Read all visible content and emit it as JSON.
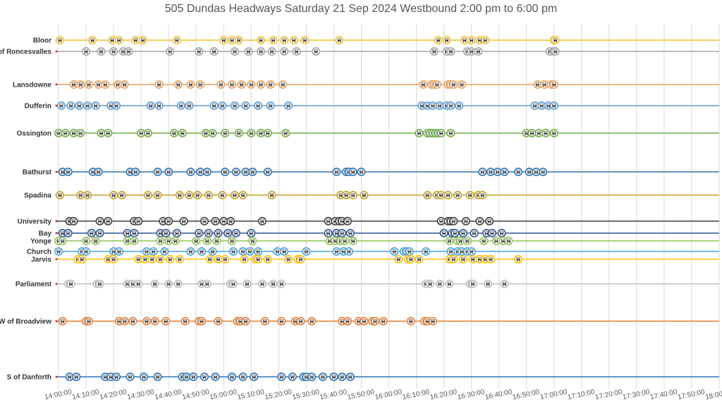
{
  "chart_data": {
    "type": "scatter",
    "title": "505 Dundas Headways Saturday 21 Sep 2024 Westbound 2:00 pm to 6:00 pm",
    "xlabel": "",
    "ylabel": "",
    "x_range": [
      "14:00:00",
      "18:00:00"
    ],
    "grid": "vertical every 10 minutes",
    "x_ticks": [
      "14:00:00",
      "14:10:00",
      "14:20:00",
      "14:30:00",
      "14:40:00",
      "14:50:00",
      "15:00:00",
      "15:10:00",
      "15:20:00",
      "15:30:00",
      "15:40:00",
      "15:50:00",
      "16:00:00",
      "16:10:00",
      "16:20:00",
      "16:30:00",
      "16:40:00",
      "16:50:00",
      "17:00:00",
      "17:10:00",
      "17:20:00",
      "17:30:00",
      "17:40:00",
      "17:50:00",
      "18:00:00"
    ],
    "series": [
      {
        "name": "Bloor",
        "color": "#f2c230",
        "pos": 57,
        "times": [
          "14:00:30",
          "14:12:20",
          "14:19:30",
          "14:22:00",
          "14:28:00",
          "14:30:40",
          "14:43:00",
          "15:00:00",
          "15:03:00",
          "15:05:30",
          "15:13:30",
          "15:18:00",
          "15:22:00",
          "15:25:30",
          "15:29:30",
          "15:42:00",
          "16:18:00",
          "16:21:00",
          "16:27:30",
          "16:30:00",
          "16:33:00",
          "16:35:00",
          "17:00:00",
          "17:00:30"
        ]
      },
      {
        "name": "E of Roncesvalles",
        "color": "#a5a5a5",
        "pos": 73,
        "times": [
          "14:10:00",
          "14:15:30",
          "14:20:00",
          "14:23:30",
          "14:25:30",
          "14:40:30",
          "14:51:00",
          "14:56:30",
          "15:04:00",
          "15:09:00",
          "15:13:30",
          "15:17:30",
          "15:22:00",
          "15:26:30",
          "15:33:30",
          "16:16:30",
          "16:21:00",
          "16:22:30",
          "16:28:30",
          "16:30:00",
          "16:32:30",
          "16:58:30",
          "17:00:00",
          "17:00:30"
        ]
      },
      {
        "name": "Lansdowne",
        "color": "#ed9f58",
        "pos": 120,
        "times": [
          "14:05:30",
          "14:08:00",
          "14:11:00",
          "14:14:30",
          "14:17:00",
          "14:21:30",
          "14:24:00",
          "14:36:30",
          "14:43:30",
          "14:48:00",
          "14:51:30",
          "14:59:00",
          "15:03:00",
          "15:06:30",
          "15:10:00",
          "15:13:30",
          "15:17:00",
          "15:21:30",
          "16:12:30",
          "16:15:30",
          "16:16:30",
          "16:17:30",
          "16:21:30",
          "16:22:30",
          "16:23:30",
          "16:26:30",
          "16:54:00",
          "16:56:30",
          "16:59:00",
          "17:00:00"
        ]
      },
      {
        "name": "Dufferin",
        "color": "#5b9bd5",
        "pos": 150,
        "times": [
          "14:01:00",
          "14:04:30",
          "14:07:30",
          "14:10:30",
          "14:13:30",
          "14:19:00",
          "14:21:00",
          "14:33:30",
          "14:36:30",
          "14:44:30",
          "14:47:30",
          "14:56:30",
          "14:59:30",
          "15:04:00",
          "15:08:00",
          "15:12:30",
          "15:17:00",
          "15:23:30",
          "16:12:00",
          "16:14:00",
          "16:16:00",
          "16:18:30",
          "16:21:00",
          "16:22:30",
          "16:25:30",
          "16:53:00",
          "16:55:30",
          "16:58:00",
          "17:00:00"
        ]
      },
      {
        "name": "Ossington",
        "color": "#70ad47",
        "pos": 189,
        "times": [
          "14:00:00",
          "14:02:30",
          "14:05:30",
          "14:08:00",
          "14:15:30",
          "14:18:00",
          "14:30:00",
          "14:32:30",
          "14:42:00",
          "14:45:00",
          "14:53:30",
          "14:56:00",
          "15:00:30",
          "15:05:30",
          "15:10:00",
          "15:13:30",
          "15:16:00",
          "15:22:30",
          "16:11:00",
          "16:14:00",
          "16:15:00",
          "16:16:00",
          "16:17:00",
          "16:18:00",
          "16:19:00",
          "16:22:30",
          "16:50:00",
          "16:52:00",
          "16:54:30",
          "16:57:00",
          "17:00:00"
        ]
      },
      {
        "name": "Bathurst",
        "color": "#2e75b6",
        "pos": 244,
        "times": [
          "14:01:30",
          "14:03:30",
          "14:12:30",
          "14:14:30",
          "14:26:00",
          "14:28:00",
          "14:36:00",
          "14:40:00",
          "14:48:00",
          "14:51:30",
          "14:54:00",
          "15:00:30",
          "15:04:30",
          "15:08:00",
          "15:10:30",
          "15:16:00",
          "15:41:00",
          "15:44:30",
          "15:45:30",
          "15:47:00",
          "15:50:00",
          "16:34:00",
          "16:37:00",
          "16:39:30",
          "16:42:00",
          "16:47:00",
          "16:51:00",
          "16:53:30",
          "16:56:00"
        ]
      },
      {
        "name": "Spadina",
        "color": "#c9a227",
        "pos": 277,
        "times": [
          "14:00:30",
          "14:08:00",
          "14:10:30",
          "14:20:00",
          "14:23:00",
          "14:32:30",
          "14:36:00",
          "14:44:00",
          "14:47:30",
          "14:50:30",
          "14:54:30",
          "14:59:30",
          "15:04:00",
          "15:07:00",
          "15:17:30",
          "15:42:30",
          "15:44:30",
          "15:47:00",
          "15:51:00",
          "16:14:00",
          "16:17:30",
          "16:19:00",
          "16:21:30",
          "16:25:00",
          "16:29:30",
          "16:32:30",
          "16:34:00"
        ]
      },
      {
        "name": "University",
        "color": "#404040",
        "pos": 314,
        "times": [
          "14:04:00",
          "14:05:30",
          "14:15:00",
          "14:18:00",
          "14:27:30",
          "14:29:00",
          "14:38:00",
          "14:40:00",
          "14:45:30",
          "14:53:00",
          "14:57:00",
          "15:00:00",
          "15:02:30",
          "15:14:00",
          "15:38:00",
          "15:40:30",
          "15:42:00",
          "15:43:00",
          "15:45:00",
          "16:19:00",
          "16:21:30",
          "16:22:30",
          "16:23:30",
          "16:28:00",
          "16:33:00",
          "16:36:30"
        ]
      },
      {
        "name": "Bay",
        "color": "#2f5597",
        "pos": 331,
        "times": [
          "14:01:30",
          "14:03:30",
          "14:12:00",
          "14:15:00",
          "14:25:00",
          "14:27:30",
          "14:37:00",
          "14:39:00",
          "14:43:00",
          "14:51:00",
          "14:54:30",
          "14:58:00",
          "15:01:30",
          "15:04:30",
          "15:10:00",
          "15:38:00",
          "15:41:00",
          "15:43:00",
          "15:46:00",
          "16:20:00",
          "16:23:00",
          "16:24:00",
          "16:27:00",
          "16:31:00",
          "16:35:30",
          "16:37:30",
          "16:41:00"
        ]
      },
      {
        "name": "Yonge",
        "color": "#92c353",
        "pos": 342,
        "times": [
          "14:00:00",
          "14:01:30",
          "14:10:00",
          "14:13:30",
          "14:25:00",
          "14:27:30",
          "14:37:00",
          "14:40:00",
          "14:42:30",
          "14:50:00",
          "14:54:00",
          "14:57:30",
          "15:03:00",
          "15:10:30",
          "15:38:30",
          "15:40:30",
          "15:42:30",
          "15:44:00",
          "15:47:00",
          "16:22:00",
          "16:25:00",
          "16:26:00",
          "16:28:30",
          "16:34:30",
          "16:39:00",
          "16:41:30",
          "16:43:30"
        ]
      },
      {
        "name": "Church",
        "color": "#4aa3df",
        "pos": 357,
        "times": [
          "14:00:00",
          "14:08:30",
          "14:10:00",
          "14:20:00",
          "14:22:00",
          "14:32:00",
          "14:34:30",
          "14:38:30",
          "14:48:00",
          "14:52:00",
          "14:56:00",
          "15:03:30",
          "15:07:00",
          "15:09:30",
          "15:12:30",
          "15:19:30",
          "15:22:00",
          "15:30:00",
          "15:41:00",
          "15:43:30",
          "15:45:30",
          "16:02:00",
          "16:05:30",
          "16:06:30",
          "16:07:30",
          "16:13:30",
          "16:22:30",
          "16:25:00",
          "16:26:30",
          "16:28:30",
          "16:30:00"
        ]
      },
      {
        "name": "Jarvis",
        "color": "#ffc000",
        "pos": 368,
        "times": [
          "14:07:00",
          "14:08:30",
          "14:18:00",
          "14:20:00",
          "14:29:00",
          "14:31:30",
          "14:34:00",
          "14:37:00",
          "14:40:30",
          "14:44:00",
          "14:55:00",
          "14:58:00",
          "15:00:30",
          "15:07:30",
          "15:11:30",
          "15:12:30",
          "15:16:00",
          "15:23:30",
          "15:27:00",
          "15:28:00",
          "16:03:30",
          "16:07:00",
          "16:08:00",
          "16:11:00",
          "16:22:00",
          "16:23:30",
          "16:27:00",
          "16:30:30",
          "16:33:00",
          "16:35:00",
          "16:37:00",
          "16:47:00"
        ]
      },
      {
        "name": "Parliament",
        "color": "#bfbfbf",
        "pos": 403,
        "times": [
          "14:03:30",
          "14:04:30",
          "14:14:00",
          "14:15:00",
          "14:25:00",
          "14:27:00",
          "14:29:00",
          "14:35:00",
          "14:40:00",
          "14:43:30",
          "14:52:00",
          "14:54:00",
          "15:02:30",
          "15:03:30",
          "15:08:30",
          "15:14:00",
          "15:18:00",
          "15:21:00",
          "16:13:30",
          "16:15:00",
          "16:18:30",
          "16:22:00",
          "16:29:30",
          "16:30:30",
          "16:36:00",
          "16:42:00"
        ]
      },
      {
        "name": "W of Broadview",
        "color": "#e97d32",
        "pos": 456,
        "times": [
          "14:01:30",
          "14:10:00",
          "14:11:00",
          "14:22:00",
          "14:24:00",
          "14:27:00",
          "14:32:00",
          "14:35:00",
          "14:39:00",
          "14:46:00",
          "14:51:00",
          "14:52:00",
          "14:58:00",
          "15:05:00",
          "15:06:00",
          "15:08:00",
          "15:15:00",
          "15:21:00",
          "15:26:00",
          "15:28:00",
          "15:32:00",
          "15:43:00",
          "15:45:00",
          "15:49:00",
          "15:51:00",
          "15:54:00",
          "15:55:00",
          "15:58:00",
          "16:08:00",
          "16:13:00",
          "16:14:00",
          "16:16:00"
        ]
      },
      {
        "name": "S of Danforth",
        "color": "#2e75b6",
        "pos": 535,
        "times": [
          "14:04:00",
          "14:06:30",
          "14:17:00",
          "14:19:00",
          "14:21:00",
          "14:26:00",
          "14:31:00",
          "14:36:00",
          "14:45:00",
          "14:46:30",
          "14:49:00",
          "14:53:00",
          "14:57:00",
          "15:03:00",
          "15:07:00",
          "15:11:00",
          "15:21:00",
          "15:25:00",
          "15:29:00",
          "15:30:00",
          "15:32:00",
          "15:36:00",
          "15:40:00",
          "15:43:00",
          "15:46:00"
        ]
      }
    ]
  }
}
